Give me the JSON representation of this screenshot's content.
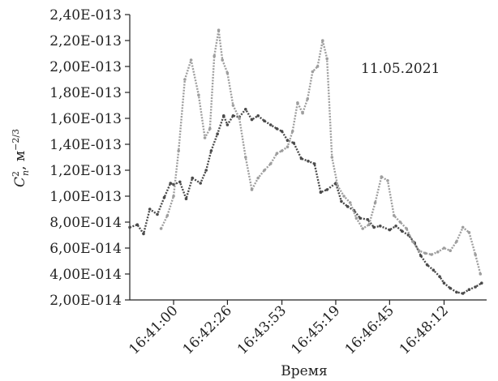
{
  "chart_data": {
    "type": "scatter",
    "title": "",
    "annotation": "11.05.2021",
    "xlabel": "Время",
    "ylabel": {
      "symbol": "C",
      "superscript": "2",
      "subscript": "n",
      "units": "м",
      "units_exponent": "−2/3"
    },
    "ylim": [
      2e-14,
      2.4e-13
    ],
    "yticks": [
      2e-14,
      4e-14,
      6e-14,
      8e-14,
      1e-13,
      1.2e-13,
      1.4e-13,
      1.6e-13,
      1.8e-13,
      2e-13,
      2.2e-13,
      2.4e-13
    ],
    "ytick_labels": [
      "2,00E-014",
      "4,00E-014",
      "6,00E-014",
      "8,00E-014",
      "1,00E-013",
      "1,20E-013",
      "1,40E-013",
      "1,60E-013",
      "1,80E-013",
      "2,00E-013",
      "2,20E-013",
      "2,40E-013"
    ],
    "xlim": [
      "16:39:50",
      "16:49:20"
    ],
    "xticks": [
      "16:41:00",
      "16:42:26",
      "16:43:53",
      "16:45:19",
      "16:46:45",
      "16:48:12"
    ],
    "grid": false,
    "legend": false,
    "series": [
      {
        "color": "#4a4a4a",
        "x": [
          "16:39:50",
          "16:40:02",
          "16:40:12",
          "16:40:22",
          "16:40:34",
          "16:40:45",
          "16:40:55",
          "16:41:00",
          "16:41:10",
          "16:41:20",
          "16:41:30",
          "16:41:43",
          "16:41:52",
          "16:42:00",
          "16:42:10",
          "16:42:20",
          "16:42:26",
          "16:42:35",
          "16:42:45",
          "16:42:55",
          "16:43:05",
          "16:43:15",
          "16:43:25",
          "16:43:35",
          "16:43:45",
          "16:43:53",
          "16:44:02",
          "16:44:12",
          "16:44:24",
          "16:44:35",
          "16:44:45",
          "16:44:55",
          "16:45:05",
          "16:45:19",
          "16:45:28",
          "16:45:38",
          "16:45:48",
          "16:45:58",
          "16:46:10",
          "16:46:20",
          "16:46:30",
          "16:46:45",
          "16:46:55",
          "16:47:05",
          "16:47:15",
          "16:47:25",
          "16:47:35",
          "16:47:45",
          "16:47:55",
          "16:48:05",
          "16:48:12",
          "16:48:22",
          "16:48:32",
          "16:48:42",
          "16:48:52",
          "16:49:02",
          "16:49:12"
        ],
        "y": [
          7.6e-14,
          7.8e-14,
          7.1e-14,
          9e-14,
          8.6e-14,
          9.9e-14,
          1.1e-13,
          1.09e-13,
          1.11e-13,
          9.8e-14,
          1.14e-13,
          1.1e-13,
          1.2e-13,
          1.35e-13,
          1.48e-13,
          1.62e-13,
          1.55e-13,
          1.62e-13,
          1.61e-13,
          1.67e-13,
          1.59e-13,
          1.62e-13,
          1.58e-13,
          1.55e-13,
          1.52e-13,
          1.5e-13,
          1.43e-13,
          1.41e-13,
          1.29e-13,
          1.27e-13,
          1.25e-13,
          1.03e-13,
          1.05e-13,
          1.1e-13,
          9.6e-14,
          9.2e-14,
          8.9e-14,
          8.3e-14,
          8.2e-14,
          7.6e-14,
          7.7e-14,
          7.4e-14,
          7.7e-14,
          7.3e-14,
          7e-14,
          6.4e-14,
          5.4e-14,
          4.7e-14,
          4.3e-14,
          3.8e-14,
          3.3e-14,
          2.9e-14,
          2.6e-14,
          2.5e-14,
          2.8e-14,
          3e-14,
          3.3e-14
        ]
      },
      {
        "color": "#9e9e9e",
        "x": [
          "16:40:40",
          "16:40:50",
          "16:41:00",
          "16:41:08",
          "16:41:18",
          "16:41:28",
          "16:41:40",
          "16:41:50",
          "16:41:58",
          "16:42:05",
          "16:42:12",
          "16:42:18",
          "16:42:26",
          "16:42:35",
          "16:42:45",
          "16:42:55",
          "16:43:05",
          "16:43:15",
          "16:43:25",
          "16:43:35",
          "16:43:45",
          "16:43:53",
          "16:44:02",
          "16:44:10",
          "16:44:18",
          "16:44:26",
          "16:44:34",
          "16:44:42",
          "16:44:50",
          "16:44:58",
          "16:45:05",
          "16:45:13",
          "16:45:22",
          "16:45:32",
          "16:45:42",
          "16:45:52",
          "16:46:02",
          "16:46:12",
          "16:46:22",
          "16:46:32",
          "16:46:42",
          "16:46:52",
          "16:47:02",
          "16:47:12",
          "16:47:22",
          "16:47:32",
          "16:47:42",
          "16:47:52",
          "16:48:02",
          "16:48:12",
          "16:48:22",
          "16:48:32",
          "16:48:42",
          "16:48:52",
          "16:49:02",
          "16:49:10"
        ],
        "y": [
          7.5e-14,
          8.5e-14,
          1e-13,
          1.35e-13,
          1.9e-13,
          2.05e-13,
          1.78e-13,
          1.45e-13,
          1.52e-13,
          2.08e-13,
          2.28e-13,
          2.05e-13,
          1.95e-13,
          1.7e-13,
          1.6e-13,
          1.3e-13,
          1.05e-13,
          1.14e-13,
          1.2e-13,
          1.25e-13,
          1.33e-13,
          1.35e-13,
          1.38e-13,
          1.5e-13,
          1.72e-13,
          1.64e-13,
          1.75e-13,
          1.96e-13,
          2e-13,
          2.2e-13,
          2.06e-13,
          1.3e-13,
          1.08e-13,
          1e-13,
          9.5e-14,
          8.3e-14,
          7.5e-14,
          7.8e-14,
          9.5e-14,
          1.15e-13,
          1.12e-13,
          8.5e-14,
          8e-14,
          7.5e-14,
          6.5e-14,
          5.8e-14,
          5.6e-14,
          5.5e-14,
          5.7e-14,
          6e-14,
          5.8e-14,
          6.5e-14,
          7.6e-14,
          7.2e-14,
          5.5e-14,
          4e-14
        ]
      }
    ]
  }
}
